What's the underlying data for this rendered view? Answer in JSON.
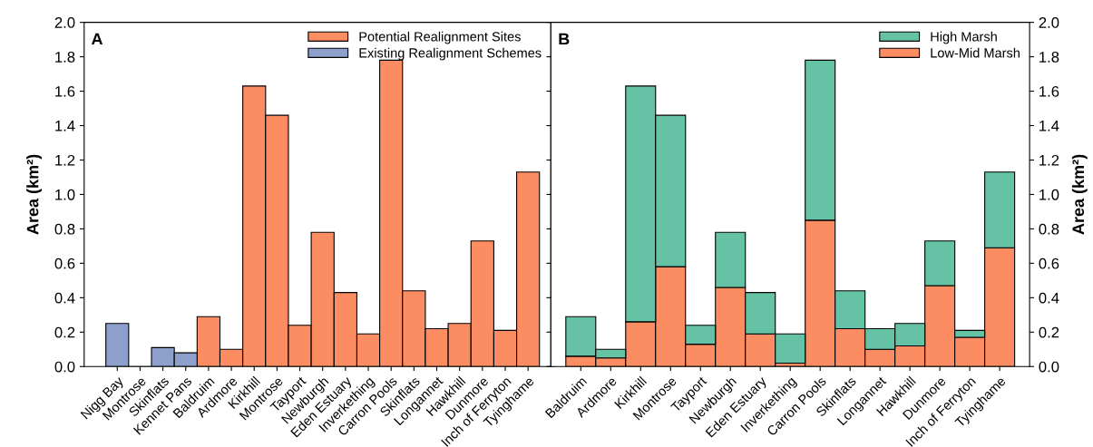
{
  "chart_data": [
    {
      "type": "bar",
      "title": "A",
      "ylabel": "Area (km²)",
      "categories": [
        "Nigg Bay",
        "Montrose",
        "Skinflats",
        "Kennet Pans",
        "Baldruim",
        "Ardmore",
        "Kirkhill",
        "Montrose",
        "Tayport",
        "Newburgh",
        "Eden Estuary",
        "Inverkething",
        "Carron Pools",
        "Skinflats",
        "Longannet",
        "Hawkhill",
        "Dunmore",
        "Inch of Ferryton",
        "Tyinghame"
      ],
      "series": [
        {
          "name": "Potential Realignment Sites",
          "color": "#fc8d62",
          "values": [
            null,
            null,
            null,
            null,
            0.29,
            0.1,
            1.63,
            1.46,
            0.24,
            0.78,
            0.43,
            0.19,
            1.78,
            0.44,
            0.22,
            0.25,
            0.73,
            0.21,
            1.13
          ]
        },
        {
          "name": "Existing Realignment Schemes",
          "color": "#8da0cb",
          "values": [
            0.25,
            0,
            0.11,
            0.08,
            null,
            null,
            null,
            null,
            null,
            null,
            null,
            null,
            null,
            null,
            null,
            null,
            null,
            null,
            null
          ]
        }
      ],
      "ylim": [
        0,
        2.0
      ],
      "yticks": [
        {
          "value": 0,
          "label": "0.0"
        },
        {
          "value": 0.2,
          "label": "0.2"
        },
        {
          "value": 0.4,
          "label": "0.4"
        },
        {
          "value": 0.6,
          "label": "0.6"
        },
        {
          "value": 0.8,
          "label": "0.8"
        },
        {
          "value": 1.0,
          "label": "1.0"
        },
        {
          "value": 1.2,
          "label": "1.2"
        },
        {
          "value": 1.4,
          "label": "1.4"
        },
        {
          "value": 1.6,
          "label": "1.6"
        },
        {
          "value": 1.8,
          "label": "1.8"
        },
        {
          "value": 2.0,
          "label": "2.0"
        }
      ],
      "legend": "top right",
      "grid": false
    },
    {
      "type": "bar",
      "title": "B",
      "ylabel": "Area (km²)",
      "stacked": true,
      "categories": [
        "Baldruim",
        "Ardmore",
        "Kirkhill",
        "Montrose",
        "Tayport",
        "Newburgh",
        "Eden Estuary",
        "Inverkething",
        "Carron Pools",
        "Skinflats",
        "Longannet",
        "Hawkhill",
        "Dunmore",
        "Inch of Ferryton",
        "Tyinghame"
      ],
      "series": [
        {
          "name": "Low-Mid Marsh",
          "color": "#fc8d62",
          "values": [
            0.06,
            0.05,
            0.26,
            0.58,
            0.13,
            0.46,
            0.19,
            0.02,
            0.85,
            0.22,
            0.1,
            0.12,
            0.47,
            0.17,
            0.69
          ]
        },
        {
          "name": "High Marsh",
          "color": "#66c2a5",
          "values": [
            0.23,
            0.05,
            1.37,
            0.88,
            0.11,
            0.32,
            0.24,
            0.17,
            0.93,
            0.22,
            0.12,
            0.13,
            0.26,
            0.04,
            0.44
          ]
        }
      ],
      "ylim": [
        0,
        2.0
      ],
      "yticks": [
        {
          "value": 0,
          "label": "0.0"
        },
        {
          "value": 0.2,
          "label": "0.2"
        },
        {
          "value": 0.4,
          "label": "0.4"
        },
        {
          "value": 0.6,
          "label": "0.6"
        },
        {
          "value": 0.8,
          "label": "0.8"
        },
        {
          "value": 1.0,
          "label": "1.0"
        },
        {
          "value": 1.2,
          "label": "1.2"
        },
        {
          "value": 1.4,
          "label": "1.4"
        },
        {
          "value": 1.6,
          "label": "1.6"
        },
        {
          "value": 1.8,
          "label": "1.8"
        },
        {
          "value": 2.0,
          "label": "2.0"
        }
      ],
      "legend": "top right",
      "grid": false
    }
  ]
}
